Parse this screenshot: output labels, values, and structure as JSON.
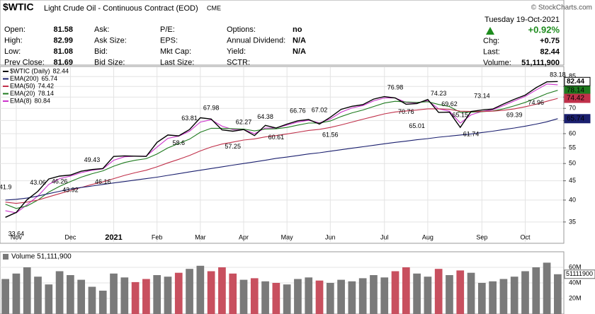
{
  "header": {
    "symbol": "$WTIC",
    "name": "Light Crude Oil - Continuous Contract (EOD)",
    "exchange": "CME",
    "logo": "© StockCharts.com",
    "date": "Tuesday 19-Oct-2021",
    "change_pct": "+0.92%",
    "columns": [
      [
        {
          "label": "Open:",
          "value": "81.58"
        },
        {
          "label": "High:",
          "value": "82.99"
        },
        {
          "label": "Low:",
          "value": "81.08"
        },
        {
          "label": "Prev Close:",
          "value": "81.69"
        }
      ],
      [
        {
          "label": "Ask:"
        },
        {
          "label": "Ask Size:"
        },
        {
          "label": "Bid:"
        },
        {
          "label": "Bid Size:"
        }
      ],
      [
        {
          "label": "P/E:"
        },
        {
          "label": "EPS:"
        },
        {
          "label": "Mkt Cap:"
        },
        {
          "label": "Last Size:"
        }
      ],
      [
        {
          "label": "Options:",
          "value": "no"
        },
        {
          "label": "Annual Dividend:",
          "value": "N/A"
        },
        {
          "label": "Yield:",
          "value": "N/A"
        },
        {
          "label": "SCTR:"
        }
      ]
    ],
    "right": [
      {
        "label": "Chg:",
        "value": "+0.75"
      },
      {
        "label": "Last:",
        "value": "82.44"
      },
      {
        "label": "Volume:",
        "value": "51,111,900"
      }
    ]
  },
  "chart_data": [
    {
      "type": "line",
      "log_scale": true,
      "grid": true,
      "categories": [
        null,
        "Nov",
        null,
        null,
        null,
        null,
        "Dec",
        null,
        null,
        null,
        "2021",
        null,
        null,
        null,
        "Feb",
        null,
        null,
        null,
        "Mar",
        null,
        null,
        null,
        "Apr",
        null,
        null,
        null,
        "May",
        null,
        null,
        null,
        "Jun",
        null,
        null,
        null,
        null,
        "Jul",
        null,
        null,
        null,
        "Aug",
        null,
        null,
        null,
        null,
        "Sep",
        null,
        null,
        null,
        "Oct",
        null,
        null,
        null
      ],
      "series": [
        {
          "name": "$WTIC (Daily)",
          "color": "#000000",
          "values": [
            36.0,
            37.1,
            40.1,
            42.2,
            45.5,
            46.3,
            46.6,
            47.7,
            48.2,
            48.5,
            52.2,
            52.4,
            52.3,
            52.2,
            56.9,
            59.5,
            59.2,
            61.5,
            66.1,
            65.6,
            61.4,
            60.9,
            61.5,
            59.3,
            63.1,
            62.1,
            63.6,
            64.9,
            65.4,
            63.6,
            66.3,
            69.6,
            70.9,
            71.6,
            74.1,
            75.2,
            74.6,
            71.8,
            72.1,
            73.9,
            68.3,
            68.4,
            62.3,
            68.7,
            69.3,
            69.7,
            71.9,
            74.0,
            75.9,
            79.4,
            82.3,
            82.44
          ]
        },
        {
          "name": "EMA(200)",
          "color": "#1a1f6e",
          "values": [
            40.0,
            40.2,
            40.5,
            41.0,
            41.6,
            42.2,
            42.8,
            43.2,
            43.6,
            44.0,
            44.4,
            44.8,
            45.2,
            45.6,
            46.0,
            46.5,
            47.0,
            47.5,
            48.0,
            48.5,
            49.0,
            49.5,
            50.0,
            50.5,
            51.0,
            51.6,
            52.0,
            52.5,
            53.0,
            53.4,
            53.9,
            54.4,
            54.9,
            55.4,
            55.9,
            56.4,
            56.9,
            57.3,
            57.8,
            58.2,
            58.7,
            59.1,
            59.5,
            59.9,
            60.4,
            60.9,
            61.5,
            62.1,
            62.8,
            63.6,
            64.5,
            65.74
          ]
        },
        {
          "name": "EMA(50)",
          "color": "#c0304a",
          "values": [
            39.5,
            39.2,
            39.5,
            40.0,
            40.8,
            41.6,
            42.4,
            43.2,
            44.0,
            44.7,
            45.6,
            46.5,
            47.3,
            48.0,
            49.0,
            50.2,
            51.3,
            52.5,
            54.0,
            55.3,
            56.3,
            57.0,
            57.7,
            58.1,
            58.8,
            59.3,
            59.9,
            60.5,
            61.2,
            61.6,
            62.3,
            63.3,
            64.4,
            65.5,
            66.6,
            67.7,
            68.5,
            68.9,
            69.3,
            69.8,
            69.8,
            69.6,
            68.8,
            68.7,
            68.7,
            68.8,
            69.2,
            69.8,
            70.7,
            71.8,
            73.1,
            74.42
          ]
        },
        {
          "name": "EMA(20)",
          "color": "#1e7a1e",
          "values": [
            39.0,
            38.0,
            38.6,
            40.0,
            42.0,
            43.5,
            44.8,
            46.0,
            47.0,
            47.8,
            49.2,
            50.3,
            51.0,
            51.5,
            53.0,
            55.0,
            56.5,
            58.0,
            60.5,
            62.0,
            62.0,
            61.8,
            61.7,
            61.0,
            61.7,
            61.8,
            62.3,
            63.2,
            64.0,
            64.0,
            64.8,
            66.6,
            68.1,
            69.3,
            70.8,
            72.3,
            73.1,
            72.8,
            72.6,
            72.9,
            71.7,
            70.8,
            68.3,
            68.4,
            68.6,
            68.9,
            69.8,
            71.1,
            72.6,
            74.5,
            76.6,
            78.14
          ]
        },
        {
          "name": "EMA(8)",
          "color": "#cc33cc",
          "values": [
            37.5,
            37.0,
            38.9,
            41.0,
            44.0,
            45.6,
            46.3,
            47.3,
            48.0,
            48.4,
            51.0,
            52.1,
            52.3,
            52.3,
            55.3,
            58.3,
            59.1,
            60.9,
            64.4,
            65.3,
            62.8,
            61.5,
            61.5,
            60.0,
            62.1,
            62.1,
            63.2,
            64.4,
            65.1,
            64.1,
            65.6,
            68.4,
            70.2,
            71.2,
            73.3,
            74.6,
            74.6,
            72.6,
            72.3,
            73.4,
            69.8,
            68.8,
            64.0,
            67.3,
            68.7,
            69.4,
            71.2,
            73.3,
            75.3,
            78.3,
            81.2,
            80.84
          ]
        }
      ],
      "extremes": [
        41.9,
        33.64,
        null,
        43.06,
        null,
        46.26,
        43.92,
        null,
        49.43,
        46.16,
        null,
        null,
        null,
        null,
        null,
        null,
        58.6,
        63.81,
        null,
        67.98,
        null,
        57.25,
        62.27,
        null,
        64.38,
        60.61,
        null,
        66.76,
        null,
        67.02,
        61.56,
        null,
        null,
        null,
        null,
        null,
        76.98,
        70.76,
        65.01,
        null,
        74.23,
        69.62,
        65.15,
        61.74,
        73.14,
        null,
        null,
        69.39,
        null,
        74.96,
        null,
        83.18
      ],
      "ylim": [
        31,
        90
      ],
      "yticks": [
        35,
        40,
        45,
        50,
        55,
        60,
        65,
        70,
        75,
        80,
        85
      ]
    },
    {
      "type": "bar",
      "title": "Volume 51,111,900",
      "up_color": "#7a7a7a",
      "down_color": "#c8505f",
      "values": [
        45000000,
        52000000,
        60000000,
        48000000,
        38000000,
        55000000,
        50000000,
        44000000,
        35000000,
        30000000,
        52000000,
        47000000,
        41000000,
        45000000,
        50000000,
        48000000,
        53000000,
        58000000,
        62000000,
        55000000,
        60000000,
        52000000,
        44000000,
        46000000,
        42000000,
        40000000,
        38000000,
        45000000,
        47000000,
        43000000,
        40000000,
        44000000,
        42000000,
        46000000,
        50000000,
        47000000,
        55000000,
        60000000,
        52000000,
        48000000,
        58000000,
        50000000,
        56000000,
        53000000,
        40000000,
        42000000,
        45000000,
        48000000,
        55000000,
        60000000,
        66000000,
        51111900
      ],
      "ylim": [
        0,
        80000000
      ],
      "yticks": [
        {
          "value": 20000000,
          "label": "20M"
        },
        {
          "value": 40000000,
          "label": "40M"
        },
        {
          "value": 60000000,
          "label": "60M"
        }
      ]
    }
  ]
}
